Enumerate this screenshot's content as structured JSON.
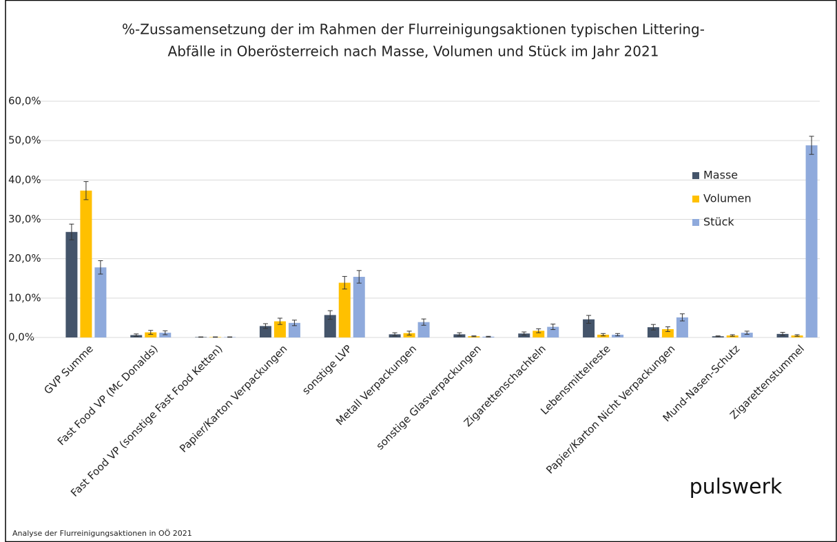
{
  "chart_data": {
    "type": "bar",
    "title": [
      "%-Zussamensetzung  der im Rahmen der Flurreinigungsaktionen typischen Littering-",
      "Abfälle in Oberösterreich nach Masse, Volumen und Stück im Jahr 2021"
    ],
    "categories": [
      "GVP Summe",
      "Fast Food VP (Mc Donalds)",
      "Fast Food VP (sonstige Fast Food Ketten)",
      "Papier/Karton Verpackungen",
      "sonstige LVP",
      "Metall Verpackungen",
      "sonstige Glasverpackungen",
      "Zigarettenschachteln",
      "Lebensmittelreste",
      "Papier/Karton Nicht Verpackungen",
      "Mund-Nasen-Schutz",
      "Zigarettenstummel"
    ],
    "series": [
      {
        "name": "Masse",
        "color": "#44546a",
        "values": [
          26.8,
          0.6,
          0.1,
          2.9,
          5.7,
          0.8,
          0.8,
          1.0,
          4.6,
          2.6,
          0.3,
          0.9
        ],
        "errors": [
          2.0,
          0.3,
          0.05,
          0.6,
          1.1,
          0.4,
          0.4,
          0.4,
          1.0,
          0.7,
          0.1,
          0.4
        ]
      },
      {
        "name": "Volumen",
        "color": "#ffc000",
        "values": [
          37.3,
          1.3,
          0.1,
          4.1,
          13.9,
          1.1,
          0.3,
          1.7,
          0.7,
          2.1,
          0.5,
          0.5
        ],
        "errors": [
          2.3,
          0.5,
          0.05,
          0.8,
          1.6,
          0.5,
          0.1,
          0.5,
          0.3,
          0.6,
          0.2,
          0.2
        ]
      },
      {
        "name": "Stück",
        "color": "#8faadc",
        "values": [
          17.8,
          1.2,
          0.1,
          3.7,
          15.4,
          3.9,
          0.2,
          2.7,
          0.7,
          5.1,
          1.2,
          48.8
        ],
        "errors": [
          1.7,
          0.5,
          0.05,
          0.7,
          1.6,
          0.8,
          0.1,
          0.7,
          0.3,
          0.9,
          0.4,
          2.3
        ]
      }
    ],
    "ylim": [
      0,
      60
    ],
    "yticks": [
      {
        "value": 0,
        "label": "0,0%"
      },
      {
        "value": 10,
        "label": "10,0%"
      },
      {
        "value": 20,
        "label": "20,0%"
      },
      {
        "value": 30,
        "label": "30,0%"
      },
      {
        "value": 40,
        "label": "40,0%"
      },
      {
        "value": 50,
        "label": "50,0%"
      },
      {
        "value": 60,
        "label": "60,0%"
      }
    ],
    "grid": true,
    "legend": "right",
    "footnote": "Analyse der Flurreinigungsaktionen in OÖ 2021",
    "logo": "pulswerk"
  }
}
